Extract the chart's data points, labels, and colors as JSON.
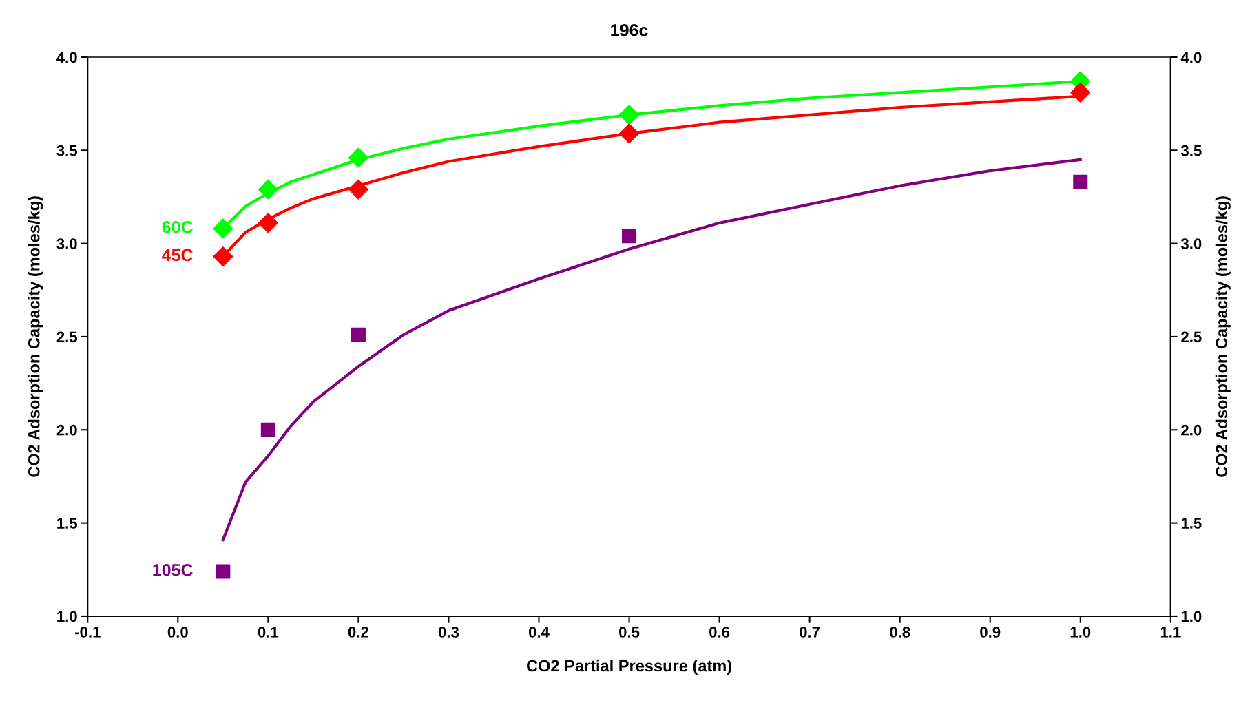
{
  "chart_data": {
    "type": "scatter",
    "title": "196c",
    "xlabel": "CO2 Partial Pressure (atm)",
    "ylabel": "CO2 Adsorption Capacity (moles/kg)",
    "y2label": "CO2 Adsorption Capacity (moles/kg)",
    "xlim": [
      -0.1,
      1.1
    ],
    "xticks": [
      {
        "value": -0.1,
        "label": "-0.1"
      },
      {
        "value": 0.0,
        "label": "0.0"
      },
      0.1,
      0.2,
      0.3,
      0.4,
      0.5,
      0.6,
      0.7,
      0.8,
      0.9,
      {
        "value": 1.0,
        "label": "1.0"
      },
      1.1
    ],
    "ylim": [
      1.0,
      4.0
    ],
    "yticks": [
      {
        "value": 1.0,
        "label": "1.0"
      },
      1.5,
      {
        "value": 2.0,
        "label": "2.0"
      },
      2.5,
      {
        "value": 3.0,
        "label": "3.0"
      },
      3.5,
      {
        "value": 4.0,
        "label": "4.0"
      }
    ],
    "y2lim": [
      1.0,
      4.0
    ],
    "y2ticks": [
      {
        "value": 1.0,
        "label": "1.0"
      },
      1.5,
      {
        "value": 2.0,
        "label": "2.0"
      },
      2.5,
      {
        "value": 3.0,
        "label": "3.0"
      },
      3.5,
      {
        "value": 4.0,
        "label": "4.0"
      }
    ],
    "grid": false,
    "legend": false,
    "series": [
      {
        "type": "line",
        "color": "#00ff00",
        "x": [
          0.05,
          0.075,
          0.1,
          0.125,
          0.15,
          0.2,
          0.25,
          0.3,
          0.4,
          0.5,
          0.6,
          0.7,
          0.8,
          0.9,
          1.0
        ],
        "values": [
          3.08,
          3.2,
          3.27,
          3.33,
          3.37,
          3.45,
          3.51,
          3.56,
          3.63,
          3.69,
          3.74,
          3.78,
          3.81,
          3.84,
          3.87
        ]
      },
      {
        "type": "line",
        "color": "#ff0000",
        "x": [
          0.05,
          0.075,
          0.1,
          0.125,
          0.15,
          0.2,
          0.25,
          0.3,
          0.4,
          0.5,
          0.6,
          0.7,
          0.8,
          0.9,
          1.0
        ],
        "values": [
          2.93,
          3.06,
          3.13,
          3.19,
          3.24,
          3.31,
          3.38,
          3.44,
          3.52,
          3.59,
          3.65,
          3.69,
          3.73,
          3.76,
          3.79
        ]
      },
      {
        "type": "line",
        "color": "#800080",
        "x": [
          0.05,
          0.075,
          0.1,
          0.125,
          0.15,
          0.2,
          0.25,
          0.3,
          0.4,
          0.5,
          0.6,
          0.7,
          0.8,
          0.9,
          1.0
        ],
        "values": [
          1.41,
          1.72,
          1.86,
          2.02,
          2.15,
          2.34,
          2.51,
          2.64,
          2.81,
          2.97,
          3.11,
          3.21,
          3.31,
          3.39,
          3.45
        ]
      },
      {
        "name": "60C",
        "color": "#00ff00",
        "marker": "diamond",
        "x": [
          0.05,
          0.1,
          0.2,
          0.5,
          1.0
        ],
        "values": [
          3.08,
          3.29,
          3.46,
          3.69,
          3.87
        ]
      },
      {
        "name": "45C",
        "color": "#ff0000",
        "marker": "diamond",
        "x": [
          0.05,
          0.1,
          0.2,
          0.5,
          1.0
        ],
        "values": [
          2.93,
          3.11,
          3.29,
          3.59,
          3.81
        ]
      },
      {
        "name": "105C",
        "color": "#800080",
        "marker": "square",
        "x": [
          0.05,
          0.1,
          0.2,
          0.5,
          1.0
        ],
        "values": [
          1.24,
          2.0,
          2.51,
          3.04,
          3.33
        ]
      }
    ]
  }
}
